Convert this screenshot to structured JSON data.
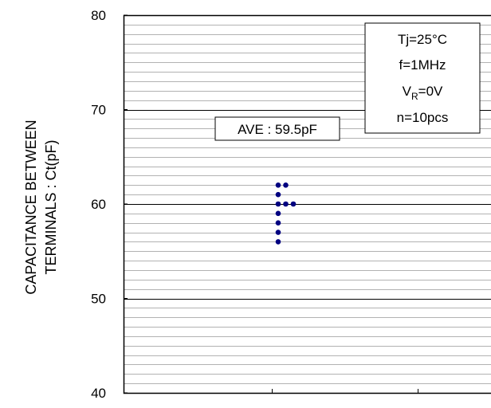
{
  "chart_data": {
    "type": "scatter",
    "ylabel_lines": [
      "CAPACITANCE BETWEEN",
      "TERMINALS : Ct(pF)"
    ],
    "ylim": [
      40,
      80
    ],
    "yticks": [
      "40",
      "50",
      "60",
      "70",
      "80"
    ],
    "minor_grid_step": 1,
    "major_grid_step": 10,
    "points": [
      {
        "x": 0,
        "y": 62
      },
      {
        "x": 1,
        "y": 62
      },
      {
        "x": 0,
        "y": 61
      },
      {
        "x": 0,
        "y": 60
      },
      {
        "x": 1,
        "y": 60
      },
      {
        "x": 2,
        "y": 60
      },
      {
        "x": 0,
        "y": 59
      },
      {
        "x": 0,
        "y": 58
      },
      {
        "x": 0,
        "y": 57
      },
      {
        "x": 0,
        "y": 56
      }
    ],
    "point_color": "#000080",
    "annotation": "AVE : 59.5pF",
    "conditions": {
      "tj": "Tj=25°C",
      "f": "f=1MHz",
      "vr_prefix": "V",
      "vr_sub": "R",
      "vr_suffix": "=0V",
      "n": "n=10pcs"
    }
  }
}
